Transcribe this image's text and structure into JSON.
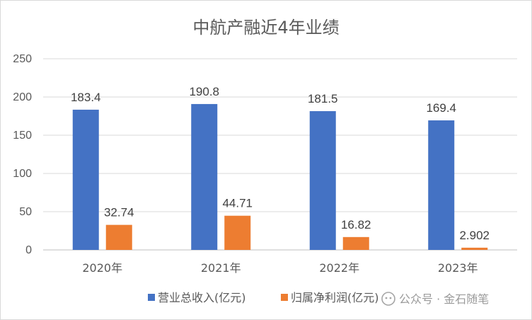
{
  "chart_data": {
    "type": "bar",
    "title": "中航产融近4年业绩",
    "categories": [
      "2020年",
      "2021年",
      "2022年",
      "2023年"
    ],
    "series": [
      {
        "name": "营业总收入(亿元)",
        "color": "#4472C4",
        "values": [
          183.4,
          190.8,
          181.5,
          169.4
        ],
        "labels": [
          "183.4",
          "190.8",
          "181.5",
          "169.4"
        ]
      },
      {
        "name": "归属净利润(亿元)",
        "color": "#ED7D31",
        "values": [
          32.74,
          44.71,
          16.82,
          2.902
        ],
        "labels": [
          "32.74",
          "44.71",
          "16.82",
          "2.902"
        ]
      }
    ],
    "ylim": [
      0,
      250
    ],
    "yticks": [
      "0",
      "50",
      "100",
      "150",
      "200",
      "250"
    ],
    "grid": true,
    "legend_position": "bottom"
  },
  "watermark": {
    "icon": "wechat-public-account-icon",
    "text": "公众号 · 金石随笔"
  }
}
